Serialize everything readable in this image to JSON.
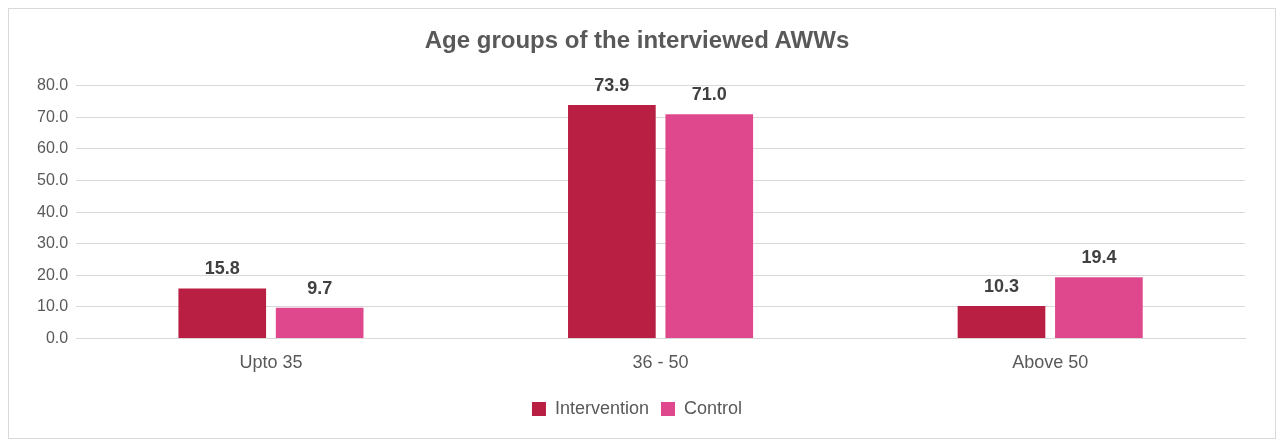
{
  "chart_data": {
    "type": "bar",
    "title": "Age groups of the interviewed AWWs",
    "categories": [
      "Upto 35",
      "36 - 50",
      "Above 50"
    ],
    "series": [
      {
        "name": "Intervention",
        "color": "#b91e43",
        "values": [
          15.8,
          73.9,
          10.3
        ],
        "value_labels": [
          "15.8",
          "73.9",
          "10.3"
        ]
      },
      {
        "name": "Control",
        "color": "#e0488e",
        "values": [
          9.7,
          71.0,
          19.4
        ],
        "value_labels": [
          "9.7",
          "71.0",
          "19.4"
        ]
      }
    ],
    "ylim": [
      0,
      80
    ],
    "yticks": [
      {
        "value": 0,
        "label": "0.0"
      },
      {
        "value": 10,
        "label": "10.0"
      },
      {
        "value": 20,
        "label": "20.0"
      },
      {
        "value": 30,
        "label": "30.0"
      },
      {
        "value": 40,
        "label": "40.0"
      },
      {
        "value": 50,
        "label": "50.0"
      },
      {
        "value": 60,
        "label": "60.0"
      },
      {
        "value": 70,
        "label": "70.0"
      },
      {
        "value": 80,
        "label": "80.0"
      }
    ],
    "grid": "y",
    "legend": "bottom"
  }
}
